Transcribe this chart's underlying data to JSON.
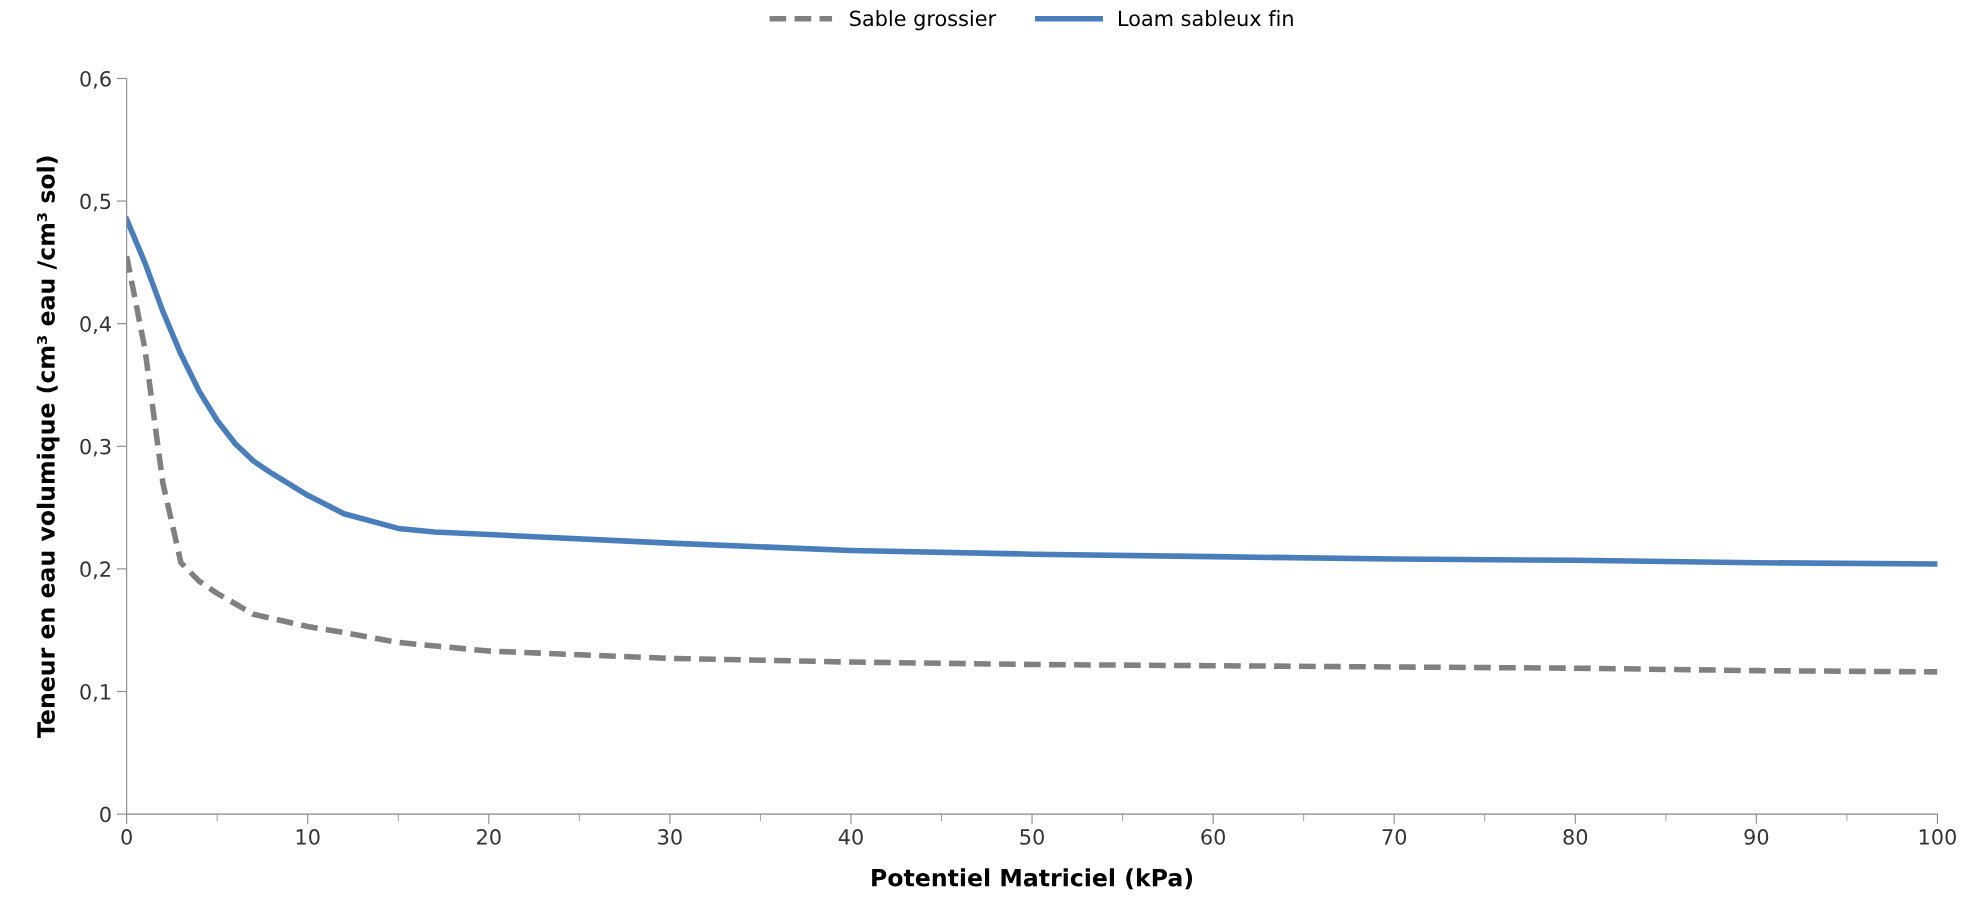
{
  "chart_data": {
    "type": "line",
    "xlabel": "Potentiel Matriciel (kPa)",
    "ylabel": "Teneur en eau volumique (cm³ eau /cm³ sol)",
    "xlim": [
      0,
      100
    ],
    "xticks": [
      0,
      10,
      20,
      30,
      40,
      50,
      60,
      70,
      80,
      90,
      100
    ],
    "ylim": [
      0,
      0.6
    ],
    "yticks": [
      {
        "value": 0,
        "label": "0"
      },
      {
        "value": 0.1,
        "label": "0,1"
      },
      {
        "value": 0.2,
        "label": "0,2"
      },
      {
        "value": 0.3,
        "label": "0,3"
      },
      {
        "value": 0.4,
        "label": "0,4"
      },
      {
        "value": 0.5,
        "label": "0,5"
      },
      {
        "value": 0.6,
        "label": "0,6"
      }
    ],
    "grid": false,
    "legend": "top",
    "marker": "none",
    "series": [
      {
        "name": "Sable grossier",
        "color": "#808080",
        "line_style": "dashed",
        "x": [
          0,
          1,
          2,
          3,
          4,
          5,
          7,
          10,
          12,
          15,
          20,
          30,
          40,
          50,
          60,
          70,
          80,
          90,
          100
        ],
        "values": [
          0.455,
          0.38,
          0.27,
          0.205,
          0.19,
          0.18,
          0.163,
          0.153,
          0.148,
          0.14,
          0.133,
          0.127,
          0.124,
          0.122,
          0.121,
          0.12,
          0.119,
          0.117,
          0.116
        ]
      },
      {
        "name": "Loam sableux fin",
        "color": "#4a7ebb",
        "line_style": "solid",
        "x": [
          0,
          1,
          2,
          3,
          4,
          5,
          6,
          7,
          8,
          10,
          12,
          15,
          17,
          20,
          30,
          40,
          50,
          60,
          70,
          80,
          90,
          100
        ],
        "values": [
          0.485,
          0.45,
          0.41,
          0.375,
          0.345,
          0.321,
          0.302,
          0.288,
          0.278,
          0.26,
          0.245,
          0.233,
          0.23,
          0.228,
          0.221,
          0.215,
          0.212,
          0.21,
          0.208,
          0.207,
          0.205,
          0.204
        ]
      }
    ]
  }
}
